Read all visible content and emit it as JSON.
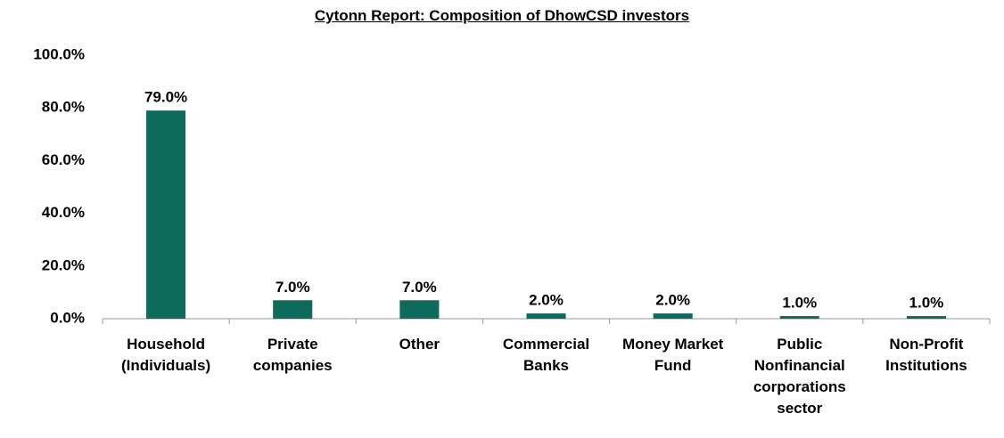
{
  "chart_data": {
    "type": "bar",
    "title": "Cytonn Report: Composition of DhowCSD investors",
    "categories": [
      "Household (Individuals)",
      "Private companies",
      "Other",
      "Commercial Banks",
      "Money Market Fund",
      "Public Nonfinancial corporations sector",
      "Non-Profit Institutions"
    ],
    "values": [
      79,
      7,
      7,
      2,
      2,
      1,
      1
    ],
    "value_labels": [
      "79.0%",
      "7.0%",
      "7.0%",
      "2.0%",
      "2.0%",
      "1.0%",
      "1.0%"
    ],
    "color": "#0e6b5c",
    "ylim": [
      0,
      100
    ],
    "yticks": [
      {
        "value": 0,
        "label": "0.0%"
      },
      {
        "value": 20,
        "label": "20.0%"
      },
      {
        "value": 40,
        "label": "40.0%"
      },
      {
        "value": 60,
        "label": "60.0%"
      },
      {
        "value": 80,
        "label": "80.0%"
      },
      {
        "value": 100,
        "label": "100.0%"
      }
    ],
    "grid": false
  }
}
